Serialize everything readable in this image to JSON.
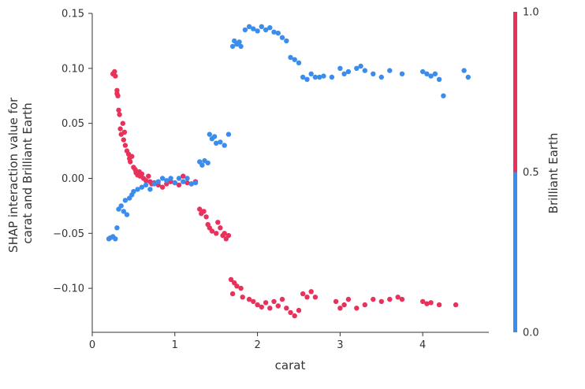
{
  "chart_data": {
    "type": "scatter",
    "title": "",
    "xlabel": "carat",
    "ylabel_lines": [
      "SHAP interaction value for",
      "carat and Brilliant Earth"
    ],
    "xlim": [
      0,
      4.8
    ],
    "ylim": [
      -0.14,
      0.15
    ],
    "xticks": [
      {
        "value": 0,
        "label": "0"
      },
      {
        "value": 1,
        "label": "1"
      },
      {
        "value": 2,
        "label": "2"
      },
      {
        "value": 3,
        "label": "3"
      },
      {
        "value": 4,
        "label": "4"
      }
    ],
    "yticks": [
      {
        "value": 0.15,
        "label": "0.15"
      },
      {
        "value": 0.1,
        "label": "0.10"
      },
      {
        "value": 0.05,
        "label": "0.05"
      },
      {
        "value": 0.0,
        "label": "0.00"
      },
      {
        "value": -0.05,
        "label": "−0.05"
      },
      {
        "value": -0.1,
        "label": "−0.10"
      }
    ],
    "colorbar": {
      "label": "Brilliant Earth",
      "ticks": [
        {
          "value": 1.0,
          "label": "1.0"
        },
        {
          "value": 0.5,
          "label": "0.5"
        },
        {
          "value": 0.0,
          "label": "0.0"
        }
      ],
      "high_color": "#e8315b",
      "low_color": "#3b8ded"
    },
    "series": [
      {
        "value": 1.0,
        "color": "#e8315b",
        "points": [
          [
            0.25,
            0.095
          ],
          [
            0.27,
            0.097
          ],
          [
            0.28,
            0.093
          ],
          [
            0.3,
            0.08
          ],
          [
            0.31,
            0.075
          ],
          [
            0.3,
            0.077
          ],
          [
            0.32,
            0.062
          ],
          [
            0.33,
            0.058
          ],
          [
            0.34,
            0.045
          ],
          [
            0.35,
            0.04
          ],
          [
            0.37,
            0.05
          ],
          [
            0.38,
            0.035
          ],
          [
            0.39,
            0.042
          ],
          [
            0.4,
            0.03
          ],
          [
            0.42,
            0.025
          ],
          [
            0.44,
            0.022
          ],
          [
            0.45,
            0.018
          ],
          [
            0.46,
            0.015
          ],
          [
            0.48,
            0.02
          ],
          [
            0.5,
            0.01
          ],
          [
            0.52,
            0.008
          ],
          [
            0.53,
            0.005
          ],
          [
            0.55,
            0.003
          ],
          [
            0.57,
            0.006
          ],
          [
            0.58,
            0.002
          ],
          [
            0.6,
            0.004
          ],
          [
            0.62,
            0.0
          ],
          [
            0.65,
            -0.002
          ],
          [
            0.68,
            0.002
          ],
          [
            0.7,
            -0.003
          ],
          [
            0.72,
            -0.005
          ],
          [
            0.75,
            -0.004
          ],
          [
            0.8,
            -0.006
          ],
          [
            0.85,
            -0.008
          ],
          [
            0.9,
            -0.005
          ],
          [
            0.95,
            -0.003
          ],
          [
            1.0,
            -0.004
          ],
          [
            1.05,
            -0.006
          ],
          [
            1.1,
            0.002
          ],
          [
            1.15,
            -0.004
          ],
          [
            1.2,
            -0.005
          ],
          [
            1.25,
            -0.003
          ],
          [
            1.3,
            -0.028
          ],
          [
            1.32,
            -0.032
          ],
          [
            1.35,
            -0.03
          ],
          [
            1.38,
            -0.035
          ],
          [
            1.4,
            -0.042
          ],
          [
            1.42,
            -0.045
          ],
          [
            1.45,
            -0.048
          ],
          [
            1.5,
            -0.05
          ],
          [
            1.52,
            -0.04
          ],
          [
            1.55,
            -0.045
          ],
          [
            1.58,
            -0.052
          ],
          [
            1.6,
            -0.05
          ],
          [
            1.62,
            -0.055
          ],
          [
            1.65,
            -0.052
          ],
          [
            1.68,
            -0.092
          ],
          [
            1.72,
            -0.095
          ],
          [
            1.75,
            -0.098
          ],
          [
            1.7,
            -0.105
          ],
          [
            1.8,
            -0.1
          ],
          [
            1.82,
            -0.108
          ],
          [
            1.9,
            -0.11
          ],
          [
            1.95,
            -0.112
          ],
          [
            2.0,
            -0.115
          ],
          [
            2.05,
            -0.117
          ],
          [
            2.1,
            -0.113
          ],
          [
            2.15,
            -0.118
          ],
          [
            2.2,
            -0.112
          ],
          [
            2.25,
            -0.116
          ],
          [
            2.3,
            -0.11
          ],
          [
            2.35,
            -0.118
          ],
          [
            2.4,
            -0.122
          ],
          [
            2.45,
            -0.125
          ],
          [
            2.5,
            -0.12
          ],
          [
            2.55,
            -0.105
          ],
          [
            2.6,
            -0.108
          ],
          [
            2.65,
            -0.103
          ],
          [
            2.7,
            -0.108
          ],
          [
            2.95,
            -0.112
          ],
          [
            3.0,
            -0.118
          ],
          [
            3.05,
            -0.115
          ],
          [
            3.1,
            -0.11
          ],
          [
            3.2,
            -0.118
          ],
          [
            3.3,
            -0.115
          ],
          [
            3.4,
            -0.11
          ],
          [
            3.5,
            -0.112
          ],
          [
            3.6,
            -0.11
          ],
          [
            3.7,
            -0.108
          ],
          [
            3.75,
            -0.11
          ],
          [
            4.0,
            -0.112
          ],
          [
            4.05,
            -0.114
          ],
          [
            4.1,
            -0.113
          ],
          [
            4.2,
            -0.115
          ],
          [
            4.4,
            -0.115
          ]
        ]
      },
      {
        "value": 0.0,
        "color": "#3b8ded",
        "points": [
          [
            0.2,
            -0.055
          ],
          [
            0.22,
            -0.054
          ],
          [
            0.25,
            -0.053
          ],
          [
            0.28,
            -0.055
          ],
          [
            0.3,
            -0.045
          ],
          [
            0.32,
            -0.028
          ],
          [
            0.35,
            -0.025
          ],
          [
            0.38,
            -0.03
          ],
          [
            0.4,
            -0.02
          ],
          [
            0.42,
            -0.033
          ],
          [
            0.45,
            -0.018
          ],
          [
            0.48,
            -0.015
          ],
          [
            0.5,
            -0.012
          ],
          [
            0.55,
            -0.01
          ],
          [
            0.6,
            -0.008
          ],
          [
            0.65,
            -0.006
          ],
          [
            0.7,
            -0.01
          ],
          [
            0.75,
            -0.005
          ],
          [
            0.8,
            -0.003
          ],
          [
            0.85,
            0.0
          ],
          [
            0.9,
            -0.002
          ],
          [
            0.95,
            0.0
          ],
          [
            1.0,
            -0.004
          ],
          [
            1.05,
            0.0
          ],
          [
            1.1,
            -0.003
          ],
          [
            1.15,
            0.0
          ],
          [
            1.2,
            -0.005
          ],
          [
            1.25,
            -0.004
          ],
          [
            1.3,
            0.015
          ],
          [
            1.33,
            0.012
          ],
          [
            1.36,
            0.016
          ],
          [
            1.4,
            0.014
          ],
          [
            1.42,
            0.04
          ],
          [
            1.45,
            0.036
          ],
          [
            1.48,
            0.038
          ],
          [
            1.5,
            0.032
          ],
          [
            1.55,
            0.033
          ],
          [
            1.6,
            0.03
          ],
          [
            1.65,
            0.04
          ],
          [
            1.7,
            0.12
          ],
          [
            1.72,
            0.125
          ],
          [
            1.75,
            0.122
          ],
          [
            1.78,
            0.124
          ],
          [
            1.8,
            0.12
          ],
          [
            1.85,
            0.135
          ],
          [
            1.9,
            0.138
          ],
          [
            1.95,
            0.136
          ],
          [
            2.0,
            0.134
          ],
          [
            2.05,
            0.138
          ],
          [
            2.1,
            0.135
          ],
          [
            2.15,
            0.137
          ],
          [
            2.2,
            0.133
          ],
          [
            2.25,
            0.132
          ],
          [
            2.3,
            0.128
          ],
          [
            2.35,
            0.125
          ],
          [
            2.4,
            0.11
          ],
          [
            2.45,
            0.108
          ],
          [
            2.5,
            0.105
          ],
          [
            2.55,
            0.092
          ],
          [
            2.6,
            0.09
          ],
          [
            2.65,
            0.095
          ],
          [
            2.7,
            0.092
          ],
          [
            2.75,
            0.092
          ],
          [
            2.8,
            0.093
          ],
          [
            2.9,
            0.092
          ],
          [
            3.0,
            0.1
          ],
          [
            3.05,
            0.095
          ],
          [
            3.1,
            0.097
          ],
          [
            3.2,
            0.1
          ],
          [
            3.25,
            0.102
          ],
          [
            3.3,
            0.098
          ],
          [
            3.4,
            0.095
          ],
          [
            3.5,
            0.092
          ],
          [
            3.6,
            0.098
          ],
          [
            3.75,
            0.095
          ],
          [
            4.0,
            0.097
          ],
          [
            4.05,
            0.095
          ],
          [
            4.1,
            0.093
          ],
          [
            4.15,
            0.095
          ],
          [
            4.2,
            0.09
          ],
          [
            4.25,
            0.075
          ],
          [
            4.5,
            0.098
          ],
          [
            4.55,
            0.092
          ]
        ]
      }
    ]
  }
}
